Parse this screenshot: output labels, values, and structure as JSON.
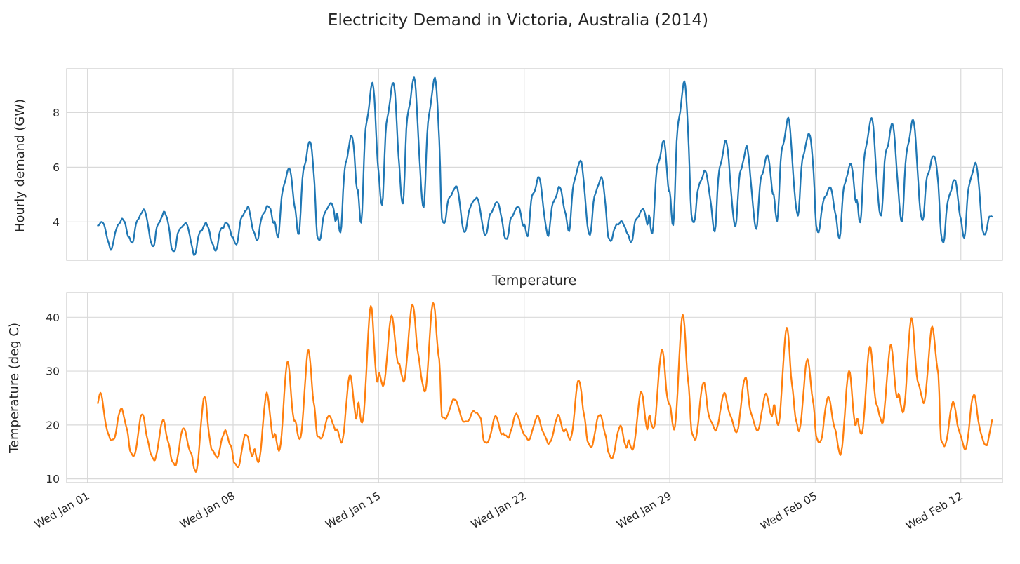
{
  "title": "Electricity Demand in Victoria, Australia (2014)",
  "colors": {
    "demand_line": "#1f77b4",
    "temperature_line": "#ff7f0e",
    "grid": "#d9d9d9",
    "spine": "#cfcfcf",
    "text": "#262626",
    "background": "#ffffff"
  },
  "x_axis": {
    "tick_labels": [
      "Wed Jan 01",
      "Wed Jan 08",
      "Wed Jan 15",
      "Wed Jan 22",
      "Wed Jan 29",
      "Wed Feb 05",
      "Wed Feb 12"
    ],
    "tick_day_index": [
      0,
      7,
      14,
      21,
      28,
      35,
      42
    ]
  },
  "chart_data": [
    {
      "type": "line",
      "title": "",
      "ylabel": "Hourly demand (GW)",
      "series_name": "hourly-electricity-demand",
      "unit": "GW",
      "color": "#1f77b4",
      "yticks": [
        4,
        6,
        8
      ],
      "ylim": [
        2.6,
        9.6
      ],
      "grid": true,
      "legend": "none",
      "shape": "demand",
      "noise": 0.18,
      "daily": {
        "dates": [
          "2014-01-01",
          "2014-01-02",
          "2014-01-03",
          "2014-01-04",
          "2014-01-05",
          "2014-01-06",
          "2014-01-07",
          "2014-01-08",
          "2014-01-09",
          "2014-01-10",
          "2014-01-11",
          "2014-01-12",
          "2014-01-13",
          "2014-01-14",
          "2014-01-15",
          "2014-01-16",
          "2014-01-17",
          "2014-01-18",
          "2014-01-19",
          "2014-01-20",
          "2014-01-21",
          "2014-01-22",
          "2014-01-23",
          "2014-01-24",
          "2014-01-25",
          "2014-01-26",
          "2014-01-27",
          "2014-01-28",
          "2014-01-29",
          "2014-01-30",
          "2014-01-31",
          "2014-02-01",
          "2014-02-02",
          "2014-02-03",
          "2014-02-04",
          "2014-02-05",
          "2014-02-06",
          "2014-02-07",
          "2014-02-08",
          "2014-02-09",
          "2014-02-10",
          "2014-02-11",
          "2014-02-12",
          "2014-02-13"
        ],
        "min": [
          3.0,
          3.0,
          3.2,
          3.1,
          2.9,
          2.8,
          2.9,
          3.1,
          3.3,
          3.4,
          3.5,
          3.3,
          3.5,
          3.9,
          4.5,
          4.6,
          4.4,
          3.9,
          3.6,
          3.5,
          3.3,
          3.4,
          3.5,
          3.6,
          3.5,
          3.3,
          3.2,
          3.5,
          3.8,
          3.9,
          3.6,
          3.8,
          3.7,
          4.0,
          4.2,
          3.6,
          3.4,
          3.9,
          4.1,
          3.9,
          4.0,
          3.2,
          3.4,
          3.5
        ],
        "max": [
          4.0,
          4.1,
          4.5,
          4.35,
          4.0,
          3.95,
          4.0,
          4.55,
          4.6,
          6.0,
          7.0,
          4.75,
          7.2,
          9.1,
          9.15,
          9.3,
          9.3,
          5.3,
          4.9,
          4.7,
          4.55,
          5.65,
          5.3,
          6.3,
          5.6,
          4.05,
          4.5,
          7.0,
          9.2,
          5.9,
          7.0,
          6.75,
          6.5,
          7.8,
          7.3,
          5.3,
          6.2,
          7.85,
          7.6,
          7.75,
          6.5,
          5.6,
          6.2,
          4.5
        ]
      }
    },
    {
      "type": "line",
      "title": "Temperature",
      "ylabel": "Temperature (deg C)",
      "series_name": "temperature",
      "unit": "deg C",
      "color": "#ff7f0e",
      "yticks": [
        10,
        20,
        30,
        40
      ],
      "ylim": [
        9.3,
        44.6
      ],
      "grid": true,
      "legend": "none",
      "shape": "temperature",
      "noise": 0.9,
      "daily": {
        "dates": [
          "2014-01-01",
          "2014-01-02",
          "2014-01-03",
          "2014-01-04",
          "2014-01-05",
          "2014-01-06",
          "2014-01-07",
          "2014-01-08",
          "2014-01-09",
          "2014-01-10",
          "2014-01-11",
          "2014-01-12",
          "2014-01-13",
          "2014-01-14",
          "2014-01-15",
          "2014-01-16",
          "2014-01-17",
          "2014-01-18",
          "2014-01-19",
          "2014-01-20",
          "2014-01-21",
          "2014-01-22",
          "2014-01-23",
          "2014-01-24",
          "2014-01-25",
          "2014-01-26",
          "2014-01-27",
          "2014-01-28",
          "2014-01-29",
          "2014-01-30",
          "2014-01-31",
          "2014-02-01",
          "2014-02-02",
          "2014-02-03",
          "2014-02-04",
          "2014-02-05",
          "2014-02-06",
          "2014-02-07",
          "2014-02-08",
          "2014-02-09",
          "2014-02-10",
          "2014-02-11",
          "2014-02-12",
          "2014-02-13"
        ],
        "min": [
          16,
          17,
          14,
          13.5,
          12.5,
          11.2,
          14,
          12,
          13,
          15,
          17,
          17.5,
          16.5,
          20,
          27,
          28,
          26,
          21,
          20.5,
          16.5,
          17.5,
          17,
          16.5,
          17,
          16,
          13.8,
          15,
          19,
          19,
          17,
          19,
          18.5,
          19,
          20,
          19,
          16.5,
          14.5,
          18,
          20,
          22,
          24,
          16,
          15.5,
          16
        ],
        "max": [
          26,
          23,
          22.5,
          21,
          19.8,
          25.5,
          19,
          18.5,
          26,
          32,
          34,
          22,
          29.5,
          42.3,
          40.5,
          42.6,
          43,
          25,
          22.5,
          21.5,
          22,
          21.8,
          22,
          28.7,
          22,
          20,
          26.5,
          34.3,
          41,
          28.2,
          26,
          29,
          26,
          38.3,
          32.5,
          25.5,
          30.5,
          35,
          35,
          40,
          38.5,
          24.5,
          26,
          23
        ]
      }
    }
  ]
}
